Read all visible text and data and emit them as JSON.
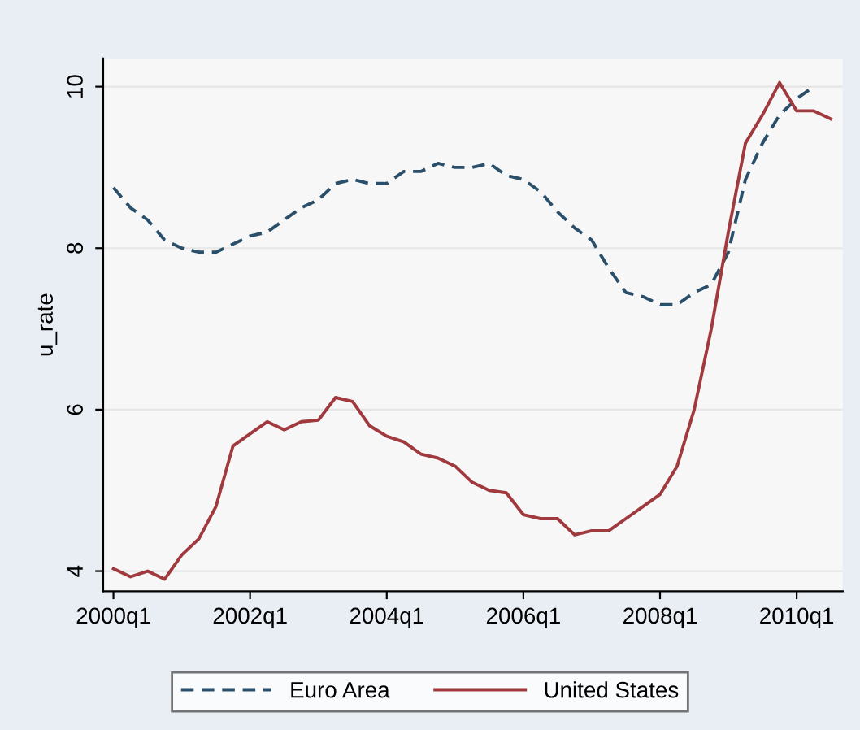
{
  "chart_data": {
    "type": "line",
    "ylabel": "u_rate",
    "categories": [
      "2000q1",
      null,
      null,
      null,
      null,
      null,
      null,
      null,
      "2002q1",
      null,
      null,
      null,
      null,
      null,
      null,
      null,
      "2004q1",
      null,
      null,
      null,
      null,
      null,
      null,
      null,
      "2006q1",
      null,
      null,
      null,
      null,
      null,
      null,
      null,
      "2008q1",
      null,
      null,
      null,
      null,
      null,
      null,
      null,
      "2010q1",
      null,
      null
    ],
    "series": [
      {
        "name": "Euro Area",
        "color": "#2a4f6a",
        "line_style": "dashed",
        "values": [
          8.75,
          8.5,
          8.35,
          8.1,
          8.0,
          7.95,
          7.95,
          8.05,
          8.15,
          8.2,
          8.35,
          8.5,
          8.6,
          8.8,
          8.85,
          8.8,
          8.8,
          8.95,
          8.95,
          9.05,
          9.0,
          9.0,
          9.05,
          8.9,
          8.85,
          8.7,
          8.45,
          8.25,
          8.1,
          7.75,
          7.45,
          7.4,
          7.3,
          7.3,
          7.45,
          7.55,
          7.95,
          8.85,
          9.3,
          9.65,
          9.85,
          10.0,
          null
        ]
      },
      {
        "name": "United States",
        "color": "#a03a3e",
        "line_style": "solid",
        "values": [
          4.03,
          3.93,
          4.0,
          3.9,
          4.2,
          4.4,
          4.8,
          5.55,
          5.7,
          5.85,
          5.75,
          5.85,
          5.87,
          6.15,
          6.1,
          5.8,
          5.67,
          5.6,
          5.45,
          5.4,
          5.3,
          5.1,
          5.0,
          4.97,
          4.7,
          4.65,
          4.65,
          4.45,
          4.5,
          4.5,
          4.65,
          4.8,
          4.95,
          5.3,
          6.0,
          7.0,
          8.2,
          9.3,
          9.65,
          10.05,
          9.7,
          9.7,
          9.6
        ]
      }
    ],
    "ylim": [
      3.75,
      10.35
    ],
    "yticks": [
      4,
      6,
      8,
      10
    ],
    "grid": "y",
    "legend": "bottom",
    "marker": "none"
  }
}
